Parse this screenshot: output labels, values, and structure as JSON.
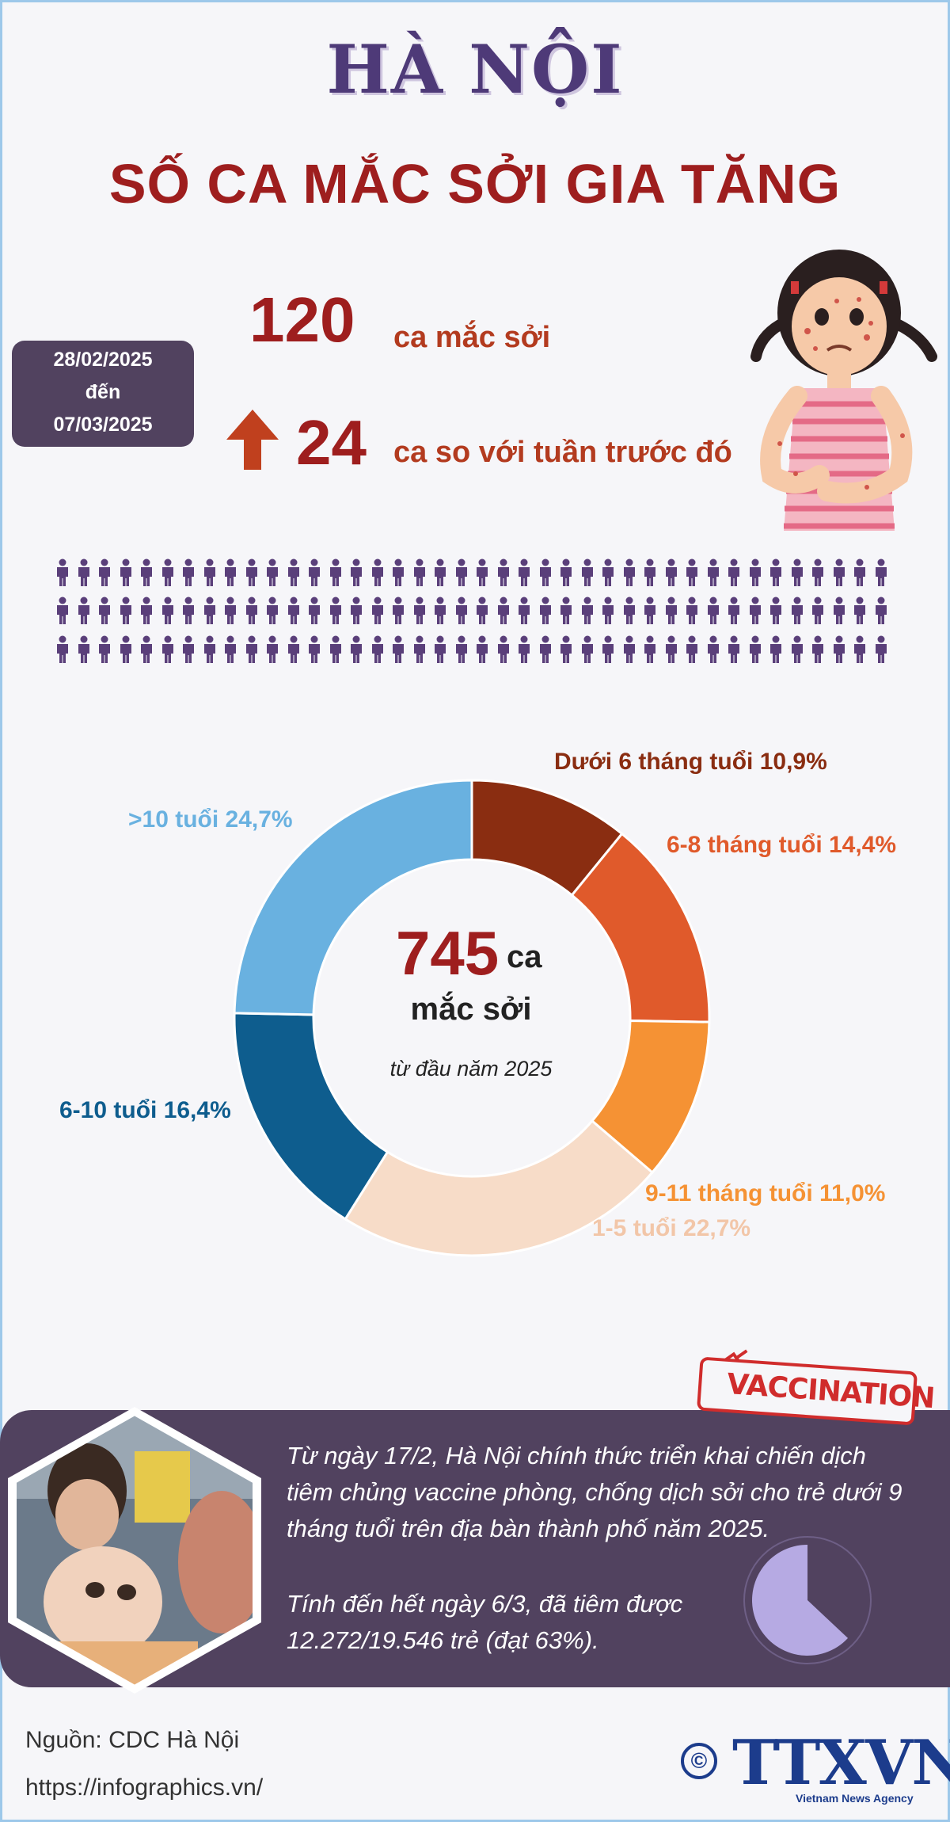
{
  "header": {
    "title": "HÀ NỘI",
    "subtitle": "SỐ CA MẮC SỞI GIA TĂNG"
  },
  "period": {
    "from": "28/02/2025",
    "to_word": "đến",
    "to": "07/03/2025"
  },
  "weekly": {
    "cases_number": "120",
    "cases_label": "ca mắc sởi",
    "increase_number": "24",
    "increase_label": "ca so với tuần trước đó"
  },
  "icons": {
    "arrow": "arrow-up-icon",
    "person": "person-icon",
    "copyright": "copyright-icon",
    "syringe": "syringe-icon"
  },
  "colors": {
    "title": "#4e3a78",
    "accent_red": "#9e1e1e",
    "arrow": "#c0401e",
    "person": "#5a3f7a",
    "band": "#51425f"
  },
  "people_rows": 3,
  "people_per_row": 40,
  "chart_data": {
    "type": "pie",
    "donut": true,
    "total_number": "745",
    "total_unit": "ca",
    "total_label": "mắc sởi",
    "total_note": "từ đầu năm 2025",
    "categories": [
      "Dưới 6 tháng tuổi",
      "6-8 tháng tuổi",
      "9-11 tháng tuổi",
      "1-5 tuổi",
      "6-10 tuổi",
      ">10 tuổi"
    ],
    "values": [
      10.9,
      14.4,
      11.0,
      22.7,
      16.4,
      24.7
    ],
    "labels": [
      "Dưới 6 tháng tuổi 10,9%",
      "6-8 tháng tuổi 14,4%",
      "9-11 tháng tuổi 11,0%",
      "1-5 tuổi 22,7%",
      "6-10 tuổi 16,4%",
      ">10 tuổi 24,7%"
    ],
    "colors": [
      "#8a2d11",
      "#e05a2b",
      "#f59234",
      "#f7dcc8",
      "#0e5d8e",
      "#69b1e0"
    ]
  },
  "vaccination": {
    "stamp": "VACCINATION",
    "paragraph1": "Từ ngày 17/2, Hà Nội chính thức triển khai chiến dịch tiêm chủng vaccine phòng, chống dịch sởi cho trẻ dưới 9 tháng tuổi trên địa bàn thành phố năm 2025.",
    "paragraph2": "Tính đến hết ngày 6/3, đã tiêm được 12.272/19.546 trẻ (đạt 63%).",
    "progress_fraction": 0.63
  },
  "footer": {
    "source": "Nguồn: CDC Hà Nội",
    "url": "https://infographics.vn/",
    "copyright_symbol": "©",
    "logo": "TTXVN",
    "logo_sub": "Vietnam News Agency"
  }
}
